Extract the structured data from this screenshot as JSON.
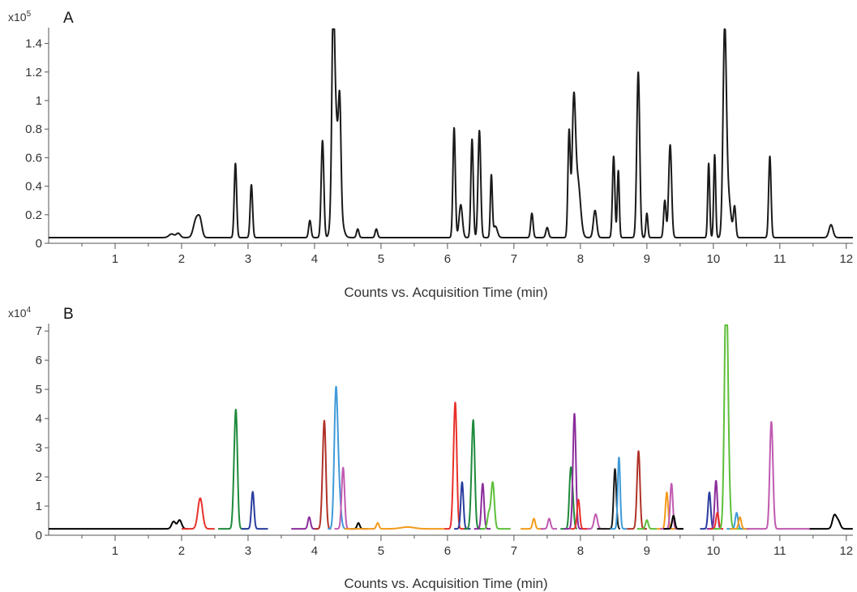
{
  "figure": {
    "background": "#ffffff",
    "axis_color": "#555555",
    "trace_color": "#1a1a1a"
  },
  "chart_data": [
    {
      "type": "line",
      "panel_label": "A",
      "y_scale_label": "x10",
      "y_scale_exponent": "5",
      "xlabel": "Counts vs. Acquisition Time (min)",
      "ylabel": "",
      "xlim": [
        0,
        12.1
      ],
      "ylim": [
        0,
        1.5
      ],
      "x_ticks": [
        1,
        2,
        3,
        4,
        5,
        6,
        7,
        8,
        9,
        10,
        11,
        12
      ],
      "y_ticks": [
        0,
        0.2,
        0.4,
        0.6,
        0.8,
        1,
        1.2,
        1.4
      ],
      "y_tick_labels": [
        "0",
        "0.2",
        "0.4",
        "0.6",
        "0.8",
        "1",
        "1.2",
        "1.4"
      ],
      "grid": false,
      "baseline": 0.04,
      "series": [
        {
          "color": "#1a1a1a",
          "peaks": [
            [
              1.85,
              0.025,
              0.04
            ],
            [
              1.95,
              0.03,
              0.03
            ],
            [
              2.22,
              0.13,
              0.04
            ],
            [
              2.28,
              0.1,
              0.03
            ],
            [
              2.81,
              0.52,
              0.018
            ],
            [
              3.05,
              0.37,
              0.018
            ],
            [
              3.93,
              0.12,
              0.018
            ],
            [
              4.12,
              0.68,
              0.02
            ],
            [
              4.28,
              1.08,
              0.02
            ],
            [
              4.31,
              0.7,
              0.04
            ],
            [
              4.38,
              0.63,
              0.018
            ],
            [
              4.36,
              0.25,
              0.05
            ],
            [
              4.65,
              0.06,
              0.018
            ],
            [
              4.93,
              0.06,
              0.018
            ],
            [
              6.1,
              0.77,
              0.018
            ],
            [
              6.2,
              0.23,
              0.025
            ],
            [
              6.37,
              0.69,
              0.018
            ],
            [
              6.48,
              0.75,
              0.02
            ],
            [
              6.66,
              0.43,
              0.015
            ],
            [
              6.72,
              0.08,
              0.03
            ],
            [
              7.27,
              0.17,
              0.018
            ],
            [
              7.5,
              0.07,
              0.02
            ],
            [
              7.83,
              0.74,
              0.018
            ],
            [
              7.9,
              0.88,
              0.025
            ],
            [
              7.96,
              0.4,
              0.04
            ],
            [
              8.22,
              0.19,
              0.025
            ],
            [
              8.5,
              0.57,
              0.018
            ],
            [
              8.57,
              0.47,
              0.015
            ],
            [
              8.87,
              1.16,
              0.022
            ],
            [
              9.0,
              0.17,
              0.015
            ],
            [
              9.27,
              0.26,
              0.018
            ],
            [
              9.35,
              0.65,
              0.022
            ],
            [
              9.93,
              0.52,
              0.015
            ],
            [
              10.02,
              0.58,
              0.015
            ],
            [
              10.17,
              1.36,
              0.025
            ],
            [
              10.22,
              0.3,
              0.04
            ],
            [
              10.32,
              0.21,
              0.018
            ],
            [
              10.85,
              0.57,
              0.018
            ],
            [
              11.77,
              0.09,
              0.03
            ]
          ]
        }
      ]
    },
    {
      "type": "line",
      "panel_label": "B",
      "y_scale_label": "x10",
      "y_scale_exponent": "4",
      "xlabel": "Counts vs. Acquisition Time (min)",
      "ylabel": "",
      "xlim": [
        0,
        12.1
      ],
      "ylim": [
        0,
        7.2
      ],
      "x_ticks": [
        1,
        2,
        3,
        4,
        5,
        6,
        7,
        8,
        9,
        10,
        11,
        12
      ],
      "y_ticks": [
        0,
        1,
        2,
        3,
        4,
        5,
        6,
        7
      ],
      "y_tick_labels": [
        "0",
        "1",
        "2",
        "3",
        "4",
        "5",
        "6",
        "7"
      ],
      "grid": false,
      "baseline": 0.22,
      "series": [
        {
          "color": "#000000",
          "range": [
            0,
            2.1
          ],
          "peaks": [
            [
              1.88,
              0.25,
              0.03
            ],
            [
              1.97,
              0.3,
              0.03
            ]
          ]
        },
        {
          "color": "#e8312a",
          "range": [
            2.0,
            2.5
          ],
          "peaks": [
            [
              2.28,
              1.05,
              0.035
            ]
          ]
        },
        {
          "color": "#1e8a3b",
          "range": [
            2.55,
            3.0
          ],
          "peaks": [
            [
              2.82,
              3.68,
              0.022
            ],
            [
              2.79,
              1.1,
              0.02
            ]
          ]
        },
        {
          "color": "#2a3c9e",
          "range": [
            2.9,
            3.3
          ],
          "peaks": [
            [
              3.07,
              1.27,
              0.02
            ]
          ]
        },
        {
          "color": "#8b2c9c",
          "range": [
            3.65,
            4.05
          ],
          "peaks": [
            [
              3.92,
              0.4,
              0.02
            ]
          ]
        },
        {
          "color": "#b03228",
          "range": [
            4.0,
            4.25
          ],
          "peaks": [
            [
              4.15,
              3.42,
              0.022
            ],
            [
              4.12,
              0.8,
              0.02
            ]
          ]
        },
        {
          "color": "#3f9ad8",
          "range": [
            4.2,
            4.55
          ],
          "peaks": [
            [
              4.32,
              4.2,
              0.025
            ],
            [
              4.36,
              1.5,
              0.03
            ]
          ]
        },
        {
          "color": "#c05ab0",
          "range": [
            4.3,
            4.65
          ],
          "peaks": [
            [
              4.43,
              2.1,
              0.022
            ]
          ]
        },
        {
          "color": "#000000",
          "range": [
            4.55,
            4.8
          ],
          "peaks": [
            [
              4.66,
              0.2,
              0.02
            ]
          ]
        },
        {
          "color": "#f39a1a",
          "range": [
            4.45,
            5.95
          ],
          "peaks": [
            [
              4.95,
              0.2,
              0.02
            ],
            [
              5.4,
              0.06,
              0.1
            ]
          ]
        },
        {
          "color": "#e8312a",
          "range": [
            5.95,
            6.3
          ],
          "peaks": [
            [
              6.12,
              3.97,
              0.022
            ],
            [
              6.09,
              1.0,
              0.02
            ]
          ]
        },
        {
          "color": "#2a3c9e",
          "range": [
            6.1,
            6.35
          ],
          "peaks": [
            [
              6.22,
              1.6,
              0.02
            ]
          ]
        },
        {
          "color": "#1e8a3b",
          "range": [
            6.25,
            6.55
          ],
          "peaks": [
            [
              6.39,
              3.48,
              0.022
            ],
            [
              6.36,
              0.7,
              0.02
            ]
          ]
        },
        {
          "color": "#8b2c9c",
          "range": [
            6.4,
            6.65
          ],
          "peaks": [
            [
              6.53,
              1.55,
              0.02
            ]
          ]
        },
        {
          "color": "#5cbf3a",
          "range": [
            6.5,
            6.95
          ],
          "peaks": [
            [
              6.68,
              1.6,
              0.025
            ],
            [
              6.62,
              0.5,
              0.02
            ]
          ]
        },
        {
          "color": "#f39a1a",
          "range": [
            7.1,
            7.45
          ],
          "peaks": [
            [
              7.3,
              0.35,
              0.02
            ]
          ]
        },
        {
          "color": "#c05ab0",
          "range": [
            7.4,
            7.65
          ],
          "peaks": [
            [
              7.53,
              0.35,
              0.02
            ]
          ]
        },
        {
          "color": "#1e8a3b",
          "range": [
            7.7,
            7.95
          ],
          "peaks": [
            [
              7.85,
              1.7,
              0.02
            ],
            [
              7.88,
              1.0,
              0.02
            ]
          ]
        },
        {
          "color": "#8b2c9c",
          "range": [
            7.75,
            8.1
          ],
          "peaks": [
            [
              7.91,
              3.95,
              0.022
            ]
          ]
        },
        {
          "color": "#e8312a",
          "range": [
            7.85,
            8.15
          ],
          "peaks": [
            [
              7.97,
              1.0,
              0.02
            ]
          ]
        },
        {
          "color": "#c05ab0",
          "range": [
            8.1,
            8.4
          ],
          "peaks": [
            [
              8.23,
              0.5,
              0.025
            ]
          ]
        },
        {
          "color": "#1a1a1a",
          "range": [
            8.25,
            8.6
          ],
          "peaks": [
            [
              8.52,
              2.05,
              0.02
            ]
          ]
        },
        {
          "color": "#3f9ad8",
          "range": [
            8.45,
            8.7
          ],
          "peaks": [
            [
              8.58,
              2.45,
              0.018
            ]
          ]
        },
        {
          "color": "#b03228",
          "range": [
            8.7,
            9.0
          ],
          "peaks": [
            [
              8.88,
              1.97,
              0.02
            ],
            [
              8.86,
              1.0,
              0.02
            ]
          ]
        },
        {
          "color": "#5cbf3a",
          "range": [
            8.85,
            9.15
          ],
          "peaks": [
            [
              9.0,
              0.3,
              0.02
            ]
          ]
        },
        {
          "color": "#f39a1a",
          "range": [
            9.15,
            9.45
          ],
          "peaks": [
            [
              9.3,
              1.25,
              0.02
            ]
          ]
        },
        {
          "color": "#c05ab0",
          "range": [
            9.2,
            9.55
          ],
          "peaks": [
            [
              9.37,
              1.55,
              0.02
            ]
          ]
        },
        {
          "color": "#000000",
          "range": [
            9.25,
            9.55
          ],
          "peaks": [
            [
              9.4,
              0.45,
              0.02
            ]
          ]
        },
        {
          "color": "#2a3c9e",
          "range": [
            9.8,
            10.05
          ],
          "peaks": [
            [
              9.94,
              1.25,
              0.02
            ]
          ]
        },
        {
          "color": "#8b2c9c",
          "range": [
            9.9,
            10.15
          ],
          "peaks": [
            [
              10.04,
              1.65,
              0.02
            ]
          ]
        },
        {
          "color": "#e8312a",
          "range": [
            9.95,
            10.15
          ],
          "peaks": [
            [
              10.06,
              0.55,
              0.02
            ]
          ]
        },
        {
          "color": "#5cbf3a",
          "range": [
            10.0,
            10.55
          ],
          "peaks": [
            [
              10.19,
              6.38,
              0.025
            ],
            [
              10.21,
              2.6,
              0.03
            ]
          ]
        },
        {
          "color": "#3f9ad8",
          "range": [
            10.2,
            10.5
          ],
          "peaks": [
            [
              10.35,
              0.55,
              0.02
            ]
          ]
        },
        {
          "color": "#f39a1a",
          "range": [
            10.25,
            10.55
          ],
          "peaks": [
            [
              10.4,
              0.4,
              0.02
            ]
          ]
        },
        {
          "color": "#c05ab0",
          "range": [
            10.5,
            11.5
          ],
          "peaks": [
            [
              10.88,
              2.58,
              0.022
            ],
            [
              10.86,
              1.5,
              0.02
            ]
          ]
        },
        {
          "color": "#000000",
          "range": [
            11.45,
            12.1
          ],
          "peaks": [
            [
              11.82,
              0.45,
              0.03
            ],
            [
              11.88,
              0.25,
              0.03
            ]
          ]
        }
      ]
    }
  ]
}
